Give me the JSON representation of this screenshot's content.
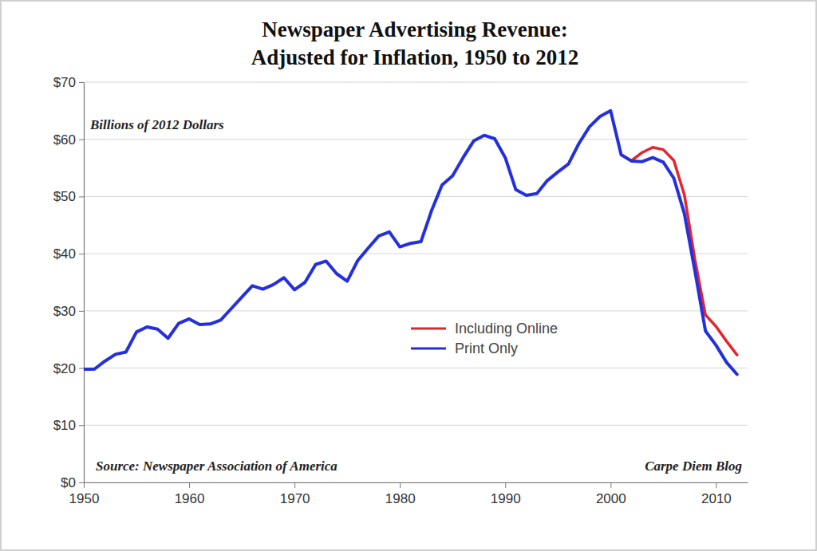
{
  "chart_data": {
    "type": "line",
    "title": "Newspaper Advertising Revenue:\nAdjusted for Inflation, 1950 to 2012",
    "subtitle": "Billions of 2012 Dollars",
    "annotations": [
      "Source: Newspaper Association of America",
      "Carpe Diem Blog"
    ],
    "x": [
      1950,
      1951,
      1952,
      1953,
      1954,
      1955,
      1956,
      1957,
      1958,
      1959,
      1960,
      1961,
      1962,
      1963,
      1964,
      1965,
      1966,
      1967,
      1968,
      1969,
      1970,
      1971,
      1972,
      1973,
      1974,
      1975,
      1976,
      1977,
      1978,
      1979,
      1980,
      1981,
      1982,
      1983,
      1984,
      1985,
      1986,
      1987,
      1988,
      1989,
      1990,
      1991,
      1992,
      1993,
      1994,
      1995,
      1996,
      1997,
      1998,
      1999,
      2000,
      2001,
      2002,
      2003,
      2004,
      2005,
      2006,
      2007,
      2008,
      2009,
      2010,
      2011,
      2012
    ],
    "series": [
      {
        "name": "Including Online",
        "color": "#e3262d",
        "values": [
          null,
          null,
          null,
          null,
          null,
          null,
          null,
          null,
          null,
          null,
          null,
          null,
          null,
          null,
          null,
          null,
          null,
          null,
          null,
          null,
          null,
          null,
          null,
          null,
          null,
          null,
          null,
          null,
          null,
          null,
          null,
          null,
          null,
          null,
          null,
          null,
          null,
          null,
          null,
          null,
          null,
          null,
          null,
          null,
          null,
          null,
          null,
          null,
          null,
          null,
          null,
          null,
          56.3,
          57.7,
          58.6,
          58.2,
          56.3,
          50.3,
          39.0,
          29.3,
          27.3,
          24.7,
          22.3
        ]
      },
      {
        "name": "Print Only",
        "color": "#2430dd",
        "values": [
          19.8,
          19.8,
          21.2,
          22.4,
          22.8,
          26.3,
          27.2,
          26.8,
          25.2,
          27.8,
          28.6,
          27.6,
          27.7,
          28.4,
          30.4,
          32.4,
          34.4,
          33.8,
          34.6,
          35.8,
          33.7,
          35.0,
          38.1,
          38.7,
          36.5,
          35.2,
          38.8,
          41.0,
          43.1,
          43.8,
          41.2,
          41.8,
          42.1,
          47.5,
          52.0,
          53.6,
          56.8,
          59.7,
          60.7,
          60.1,
          56.8,
          51.2,
          50.2,
          50.5,
          52.8,
          54.3,
          55.7,
          59.3,
          62.2,
          64.0,
          65.0,
          57.3,
          56.2,
          56.1,
          56.8,
          56.0,
          53.2,
          47.0,
          37.0,
          26.5,
          24.0,
          21.0,
          18.9
        ]
      }
    ],
    "xlim": [
      1950,
      2013
    ],
    "xticks": [
      1950,
      1960,
      1970,
      1980,
      1990,
      2000,
      2010
    ],
    "ylim": [
      0,
      70
    ],
    "yticks": [
      {
        "value": 0,
        "label": "$0"
      },
      {
        "value": 10,
        "label": "$10"
      },
      {
        "value": 20,
        "label": "$20"
      },
      {
        "value": 30,
        "label": "$30"
      },
      {
        "value": 40,
        "label": "$40"
      },
      {
        "value": 50,
        "label": "$50"
      },
      {
        "value": 60,
        "label": "$60"
      },
      {
        "value": 70,
        "label": "$70"
      }
    ],
    "grid": true,
    "legend": "lower center"
  }
}
